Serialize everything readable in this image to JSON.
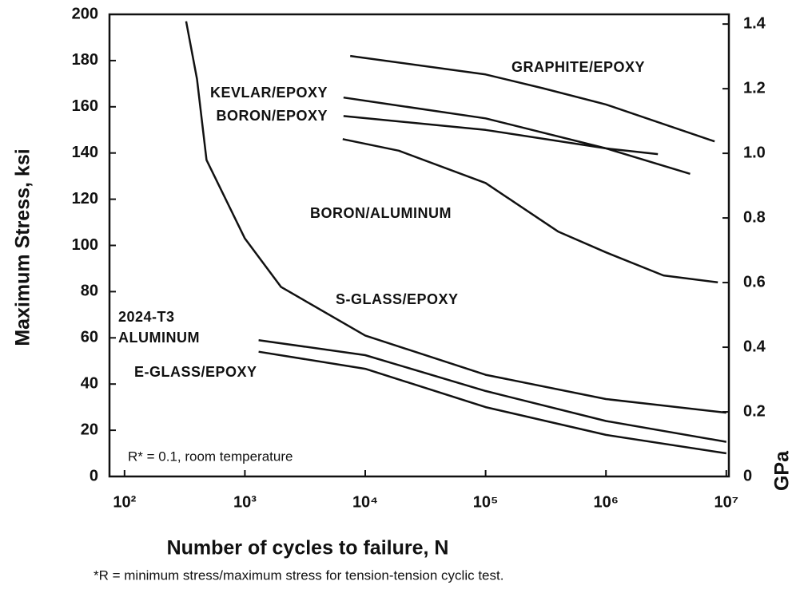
{
  "chart_data": {
    "type": "line",
    "xlabel": "Number of cycles to failure, N",
    "ylabel": "Maximum Stress, ksi",
    "y2label": "GPa",
    "annotation": "R* = 0.1, room temperature",
    "footnote": "*R = minimum stress/maximum stress for tension-tension cyclic test.",
    "xscale": "log",
    "xlim": [
      75,
      10500000
    ],
    "ylim": [
      0,
      200
    ],
    "y2lim": [
      0,
      1.43
    ],
    "xticks": [
      {
        "value": 100,
        "label": "10²"
      },
      {
        "value": 1000,
        "label": "10³"
      },
      {
        "value": 10000,
        "label": "10⁴"
      },
      {
        "value": 100000,
        "label": "10⁵"
      },
      {
        "value": 1000000,
        "label": "10⁶"
      },
      {
        "value": 10000000,
        "label": "10⁷"
      }
    ],
    "yticks": [
      0,
      20,
      40,
      60,
      80,
      100,
      120,
      140,
      160,
      180,
      200
    ],
    "y2ticks": [
      0,
      0.2,
      0.4,
      0.6,
      0.8,
      {
        "value": 1,
        "label": "1.0"
      },
      1.2,
      1.4
    ],
    "series": [
      {
        "name": "GRAPHITE/EPOXY",
        "color": "#111111",
        "x": [
          7500,
          100000,
          300000,
          1000000,
          8000000
        ],
        "values": [
          182,
          174,
          168,
          161,
          145
        ]
      },
      {
        "name": "KEVLAR/EPOXY",
        "color": "#111111",
        "x": [
          6600,
          100000,
          1000000,
          5000000
        ],
        "values": [
          164,
          155,
          142,
          131
        ]
      },
      {
        "name": "BORON/EPOXY",
        "color": "#111111",
        "x": [
          6600,
          100000,
          1000000,
          2700000
        ],
        "values": [
          156,
          150,
          142,
          139.5
        ]
      },
      {
        "name": "BORON/ALUMINUM",
        "color": "#111111",
        "x": [
          6500,
          19000,
          100000,
          400000,
          1000000,
          3000000,
          8500000
        ],
        "values": [
          146,
          141,
          127,
          106,
          97,
          87,
          84
        ]
      },
      {
        "name": "S-GLASS/EPOXY",
        "color": "#111111",
        "x": [
          325,
          400,
          480,
          1000,
          2000,
          10000,
          100000,
          1000000,
          10000000
        ],
        "values": [
          197,
          172,
          137,
          103,
          82,
          61,
          44,
          33.5,
          27.6
        ]
      },
      {
        "name": "2024-T3 ALUMINUM",
        "color": "#111111",
        "x": [
          1300,
          10000,
          100000,
          1000000,
          10000000
        ],
        "values": [
          59,
          52.5,
          37,
          24,
          15
        ]
      },
      {
        "name": "E-GLASS/EPOXY",
        "color": "#111111",
        "x": [
          1300,
          10000,
          100000,
          1000000,
          10000000
        ],
        "values": [
          54,
          46.6,
          30,
          18,
          10
        ]
      }
    ]
  }
}
